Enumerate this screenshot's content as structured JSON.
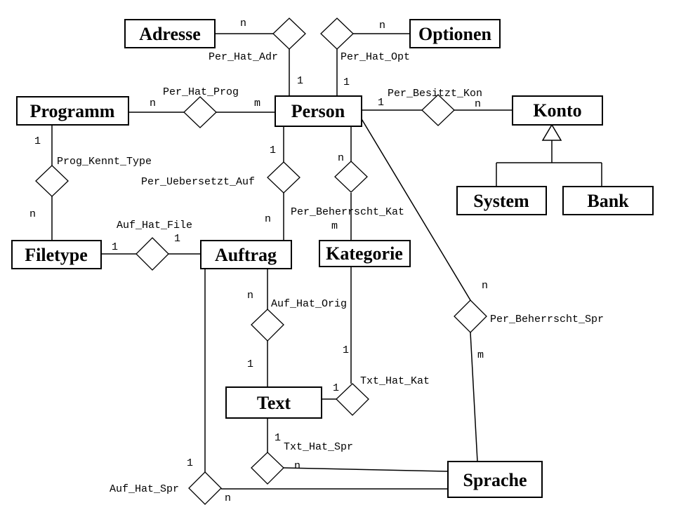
{
  "entities": {
    "adresse": "Adresse",
    "optionen": "Optionen",
    "programm": "Programm",
    "person": "Person",
    "konto": "Konto",
    "system": "System",
    "bank": "Bank",
    "filetype": "Filetype",
    "auftrag": "Auftrag",
    "kategorie": "Kategorie",
    "text": "Text",
    "sprache": "Sprache"
  },
  "relationships": {
    "per_hat_adr": "Per_Hat_Adr",
    "per_hat_opt": "Per_Hat_Opt",
    "per_hat_prog": "Per_Hat_Prog",
    "per_besitzt_kon": "Per_Besitzt_Kon",
    "prog_kennt_type": "Prog_Kennt_Type",
    "per_uebersetzt_auf": "Per_Uebersetzt_Auf",
    "per_beherrscht_kat": "Per_Beherrscht_Kat",
    "auf_hat_file": "Auf_Hat_File",
    "auf_hat_orig": "Auf_Hat_Orig",
    "per_beherrscht_spr": "Per_Beherrscht_Spr",
    "txt_hat_kat": "Txt_Hat_Kat",
    "txt_hat_spr": "Txt_Hat_Spr",
    "auf_hat_spr": "Auf_Hat_Spr"
  },
  "cardinalities": {
    "adr_adresse": "n",
    "adr_person": "1",
    "opt_optionen": "n",
    "opt_person": "1",
    "prog_programm": "n",
    "prog_person": "m",
    "kon_person": "1",
    "kon_konto": "n",
    "kennt_programm": "1",
    "kennt_filetype": "n",
    "uebers_person": "1",
    "uebers_auftrag": "n",
    "kat_person": "n",
    "kat_kategorie": "m",
    "file_filetype": "1",
    "file_auftrag": "1",
    "orig_auftrag": "n",
    "orig_text": "1",
    "spr_person": "n",
    "spr_sprache": "m",
    "txtkat_kategorie": "1",
    "txtkat_text": "1",
    "txtspr_text": "1",
    "txtspr_sprache": "n",
    "aufspr_auftrag": "1",
    "aufspr_sprache": "n"
  }
}
